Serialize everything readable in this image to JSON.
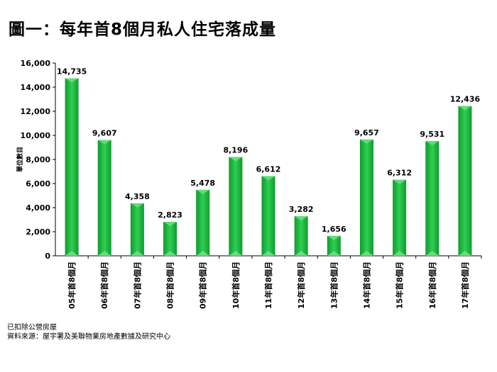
{
  "title": "圖一：每年首8個月私人住宅落成量",
  "notes": {
    "line1": "已扣除公營房屋",
    "line2": "資料來源：屋宇署及美聯物業房地產數據及研究中心"
  },
  "colors": {
    "bar_dark": "#119a2e",
    "bar_light": "#2ecf52",
    "bar_cap": "#72e089"
  },
  "chart_data": {
    "type": "bar",
    "ylabel": "單位數目",
    "xlabel": "",
    "ylim": [
      0,
      16000
    ],
    "yticks": [
      0,
      2000,
      4000,
      6000,
      8000,
      10000,
      12000,
      14000,
      16000
    ],
    "ytick_labels": [
      "0",
      "2,000",
      "4,000",
      "6,000",
      "8,000",
      "10,000",
      "12,000",
      "14,000",
      "16,000"
    ],
    "categories": [
      "05年首8個月",
      "06年首8個月",
      "07年首8個月",
      "08年首8個月",
      "09年首8個月",
      "10年首8個月",
      "11年首8個月",
      "12年首8個月",
      "13年首8個月",
      "14年首8個月",
      "15年首8個月",
      "16年首8個月",
      "17年首8個月"
    ],
    "values": [
      14735,
      9607,
      4358,
      2823,
      5478,
      8196,
      6612,
      3282,
      1656,
      9657,
      6312,
      9531,
      12436
    ],
    "value_labels": [
      "14,735",
      "9,607",
      "4,358",
      "2,823",
      "5,478",
      "8,196",
      "6,612",
      "3,282",
      "1,656",
      "9,657",
      "6,312",
      "9,531",
      "12,436"
    ],
    "grid": false,
    "legend": "none"
  }
}
